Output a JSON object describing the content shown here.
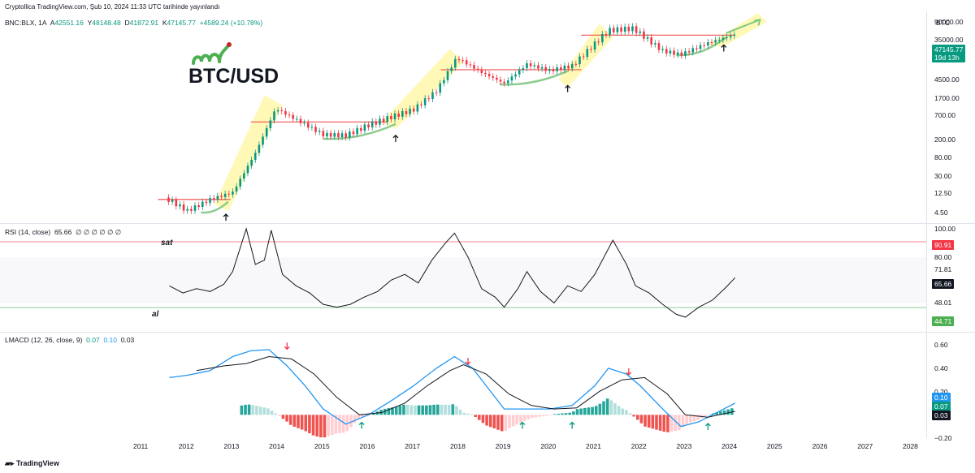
{
  "watermark": "Cryptollica TradingView.com, Şub 10, 2024 11:33 UTC tarihinde yayınlandı",
  "symbol": {
    "name": "BNC:BLX, 1A",
    "o_label": "A",
    "o": "42551.16",
    "h_label": "Y",
    "h": "48148.48",
    "l_label": "D",
    "l": "41872.91",
    "c_label": "K",
    "c": "47145.77",
    "change": "+4589.24 (+10.78%)",
    "currency": "BTC"
  },
  "logo_text": "BTC/USD",
  "price_tag": {
    "price": "47145.77",
    "countdown": "19d 13h",
    "color": "#089981"
  },
  "price_axis": [
    "90000.00",
    "35000.00",
    "12500.00",
    "4500.00",
    "1700.00",
    "700.00",
    "200.00",
    "80.00",
    "30.00",
    "12.50",
    "4.50"
  ],
  "rsi": {
    "title": "RSI (14, close)",
    "value": "65.66",
    "zeros": "∅ ∅ ∅ ∅ ∅ ∅",
    "sat_label": "sat",
    "al_label": "al",
    "upper_line": 90.91,
    "lower_line": 44.71,
    "upper_tag": "90.91",
    "lower_tag": "44.71",
    "value_tag": "65.66",
    "axis": [
      "100.00",
      "80.00",
      "71.81",
      "60.00",
      "48.01"
    ]
  },
  "lmacd": {
    "title": "LMACD (12, 26, close, 9)",
    "v1": "0.07",
    "v2": "0.10",
    "v3": "0.03",
    "axis": [
      "0.60",
      "0.40",
      "0.20",
      "−0.20"
    ],
    "tags": [
      "0.10",
      "0.07",
      "0.03"
    ]
  },
  "x_axis": [
    "2011",
    "2012",
    "2013",
    "2014",
    "2015",
    "2016",
    "2017",
    "2018",
    "2019",
    "2020",
    "2021",
    "2022",
    "2023",
    "2024",
    "2025",
    "2026",
    "2027",
    "2028"
  ],
  "branding": "TradingView",
  "chart_data": [
    {
      "type": "line",
      "title": "BTC/USD",
      "scale": "log",
      "x": [
        2011.5,
        2012.0,
        2012.5,
        2013.0,
        2013.5,
        2013.95,
        2014.5,
        2015.0,
        2015.5,
        2016.0,
        2016.5,
        2017.0,
        2017.5,
        2017.95,
        2018.5,
        2019.0,
        2019.5,
        2020.0,
        2020.5,
        2021.0,
        2021.3,
        2021.85,
        2022.5,
        2022.9,
        2023.5,
        2024.1
      ],
      "values": [
        10,
        5,
        9,
        13,
        100,
        1000,
        500,
        260,
        250,
        430,
        650,
        960,
        2500,
        14000,
        6500,
        3700,
        10000,
        7200,
        9200,
        29000,
        58000,
        64000,
        20000,
        16500,
        30000,
        47145
      ],
      "ylim": [
        3,
        120000
      ],
      "annotations": [
        "al",
        "sat"
      ]
    },
    {
      "type": "line",
      "title": "RSI (14, close)",
      "series": [
        {
          "name": "RSI",
          "x": [
            2011.6,
            2011.9,
            2012.2,
            2012.5,
            2012.8,
            2013.0,
            2013.3,
            2013.5,
            2013.7,
            2013.85,
            2014.1,
            2014.4,
            2014.7,
            2015.0,
            2015.3,
            2015.6,
            2015.9,
            2016.2,
            2016.5,
            2016.8,
            2017.1,
            2017.4,
            2017.7,
            2017.9,
            2018.2,
            2018.5,
            2018.8,
            2019.0,
            2019.3,
            2019.5,
            2019.8,
            2020.1,
            2020.4,
            2020.7,
            2021.0,
            2021.2,
            2021.4,
            2021.7,
            2021.9,
            2022.2,
            2022.5,
            2022.8,
            2023.0,
            2023.3,
            2023.6,
            2023.9,
            2024.1
          ],
          "values": [
            60,
            55,
            58,
            56,
            61,
            70,
            100,
            75,
            78,
            99,
            68,
            60,
            55,
            47,
            45,
            47,
            52,
            56,
            64,
            68,
            62,
            78,
            90,
            97,
            80,
            58,
            52,
            45,
            58,
            70,
            56,
            48,
            60,
            56,
            68,
            80,
            92,
            75,
            60,
            55,
            47,
            40,
            38,
            45,
            50,
            59,
            65.66
          ]
        }
      ],
      "ylim": [
        30,
        100
      ],
      "reference_lines": [
        90.91,
        44.71
      ]
    },
    {
      "type": "bar",
      "title": "LMACD (12, 26, close, 9)",
      "series": [
        {
          "name": "MACD",
          "x": [
            2011.6,
            2012.0,
            2012.5,
            2013.0,
            2013.4,
            2013.8,
            2014.2,
            2014.6,
            2015.0,
            2015.5,
            2016.0,
            2016.5,
            2017.0,
            2017.5,
            2017.9,
            2018.3,
            2018.7,
            2019.0,
            2019.5,
            2020.0,
            2020.5,
            2021.0,
            2021.3,
            2021.7,
            2022.0,
            2022.5,
            2022.9,
            2023.3,
            2023.7,
            2024.1
          ],
          "values": [
            0.32,
            0.34,
            0.38,
            0.5,
            0.55,
            0.56,
            0.42,
            0.25,
            0.05,
            -0.08,
            0.0,
            0.12,
            0.25,
            0.4,
            0.5,
            0.4,
            0.2,
            0.05,
            0.05,
            0.05,
            0.08,
            0.25,
            0.4,
            0.35,
            0.25,
            0.05,
            -0.1,
            -0.06,
            0.02,
            0.1
          ]
        },
        {
          "name": "Signal",
          "x": [
            2012.2,
            2012.8,
            2013.3,
            2013.8,
            2014.3,
            2014.8,
            2015.3,
            2015.8,
            2016.3,
            2016.8,
            2017.3,
            2017.8,
            2018.1,
            2018.6,
            2019.1,
            2019.6,
            2020.1,
            2020.6,
            2021.1,
            2021.6,
            2022.1,
            2022.6,
            2023.0,
            2023.5,
            2024.1
          ],
          "values": [
            0.38,
            0.42,
            0.44,
            0.5,
            0.48,
            0.35,
            0.15,
            0.0,
            0.02,
            0.1,
            0.25,
            0.38,
            0.43,
            0.35,
            0.18,
            0.08,
            0.05,
            0.06,
            0.2,
            0.3,
            0.32,
            0.18,
            0.0,
            -0.02,
            0.03
          ]
        }
      ],
      "ylim": [
        -0.2,
        0.65
      ]
    }
  ]
}
